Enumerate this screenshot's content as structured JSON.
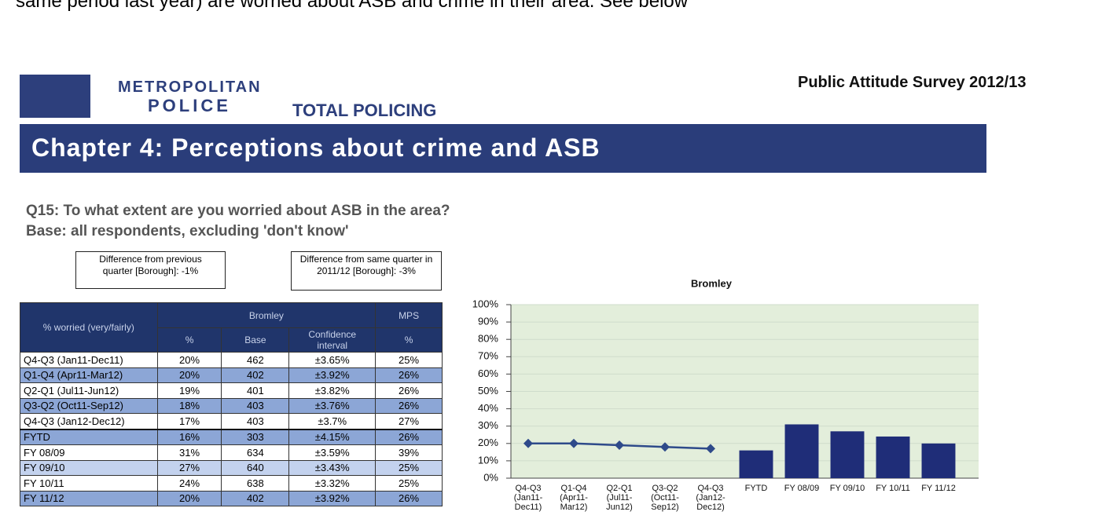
{
  "intro": "same period last year) are worried about ASB and crime in their area. See below",
  "header": {
    "logo_line1": "METROPOLITAN",
    "logo_line2": "POLICE",
    "tagline": "TOTAL POLICING",
    "survey": "Public Attitude Survey 2012/13",
    "chapter": "Chapter 4: Perceptions about crime and ASB"
  },
  "question": "Q15: To what extent are you worried about ASB in the area?",
  "base": "Base: all respondents, excluding 'don't know'",
  "notes": [
    "Difference from previous quarter [Borough]: -1%",
    "Difference from same quarter in 2011/12 [Borough]: -3%"
  ],
  "table": {
    "header": [
      "% worried (very/fairly)",
      "Bromley",
      "MPS"
    ],
    "subheader": [
      "%",
      "Base",
      "Confidence interval",
      "%"
    ],
    "rows": [
      [
        "Q4-Q3 (Jan11-Dec11)",
        "20%",
        "462",
        "±3.65%",
        "25%"
      ],
      [
        "Q1-Q4 (Apr11-Mar12)",
        "20%",
        "402",
        "±3.92%",
        "26%"
      ],
      [
        "Q2-Q1 (Jul11-Jun12)",
        "19%",
        "401",
        "±3.82%",
        "26%"
      ],
      [
        "Q3-Q2 (Oct11-Sep12)",
        "18%",
        "403",
        "±3.76%",
        "26%"
      ],
      [
        "Q4-Q3 (Jan12-Dec12)",
        "17%",
        "403",
        "±3.7%",
        "27%"
      ],
      [
        "FYTD",
        "16%",
        "303",
        "±4.15%",
        "26%"
      ],
      [
        "FY 08/09",
        "31%",
        "634",
        "±3.59%",
        "39%"
      ],
      [
        "FY 09/10",
        "27%",
        "640",
        "±3.43%",
        "25%"
      ],
      [
        "FY 10/11",
        "24%",
        "638",
        "±3.32%",
        "25%"
      ],
      [
        "FY 11/12",
        "20%",
        "402",
        "±3.92%",
        "26%"
      ]
    ]
  },
  "chart_data": {
    "type": "bar",
    "title": "Bromley",
    "categories": [
      "Q4-Q3 (Jan11- Dec11)",
      "Q1-Q4 (Apr11- Mar12)",
      "Q2-Q1 (Jul11- Jun12)",
      "Q3-Q2 (Oct11- Sep12)",
      "Q4-Q3 (Jan12- Dec12)",
      "FYTD",
      "FY 08/09",
      "FY 09/10",
      "FY 10/11",
      "FY 11/12"
    ],
    "series": [
      {
        "type": "line",
        "color": "#2e4a8a",
        "values": [
          20,
          20,
          19,
          18,
          17,
          null,
          null,
          null,
          null,
          null
        ]
      },
      {
        "type": "bar",
        "color": "#1f2d78",
        "values": [
          null,
          null,
          null,
          null,
          null,
          16,
          31,
          27,
          24,
          20
        ]
      }
    ],
    "ylim": [
      0,
      100
    ],
    "yticks": [
      {
        "value": 0,
        "label": "0%"
      },
      {
        "value": 10,
        "label": "10%"
      },
      {
        "value": 20,
        "label": "20%"
      },
      {
        "value": 30,
        "label": "30%"
      },
      {
        "value": 40,
        "label": "40%"
      },
      {
        "value": 50,
        "label": "50%"
      },
      {
        "value": 60,
        "label": "60%"
      },
      {
        "value": 70,
        "label": "70%"
      },
      {
        "value": 80,
        "label": "80%"
      },
      {
        "value": 90,
        "label": "90%"
      },
      {
        "value": 100,
        "label": "100%"
      }
    ],
    "grid": true,
    "background": "#e3eedb"
  }
}
